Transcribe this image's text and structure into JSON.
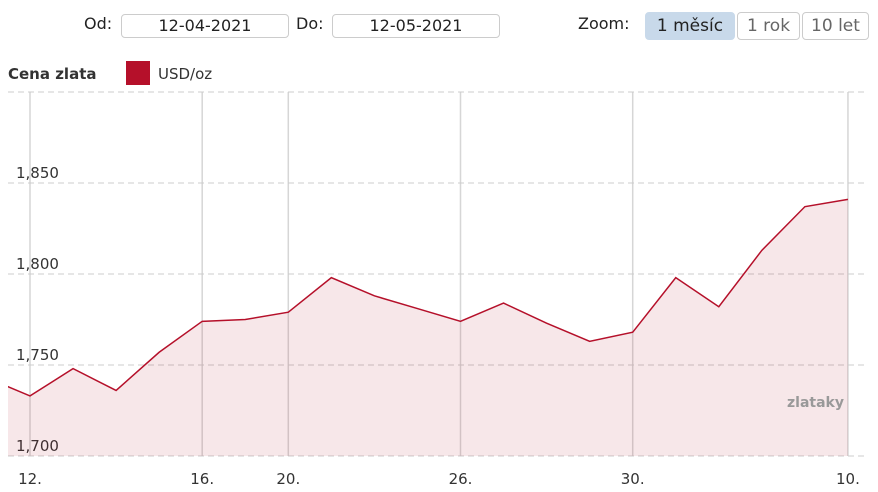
{
  "controls": {
    "from_label": "Od:",
    "from_value": "12-04-2021",
    "to_label": "Do:",
    "to_value": "12-05-2021",
    "zoom_label": "Zoom:",
    "zoom_options": [
      "1 měsíc",
      "1 rok",
      "10 let"
    ],
    "zoom_selected": 0
  },
  "chart_data": {
    "type": "area",
    "legend_title": "Cena zlata",
    "categories": [
      null,
      "12.",
      null,
      null,
      null,
      "16.",
      null,
      "20.",
      null,
      null,
      null,
      "26.",
      null,
      null,
      null,
      "30.",
      null,
      null,
      null,
      null,
      "10."
    ],
    "series": [
      {
        "name": "USD/oz",
        "color": "#b5102a",
        "values": [
          1743,
          1733,
          1748,
          1736,
          1757,
          1774,
          1775,
          1779,
          1798,
          1788,
          1781,
          1774,
          1784,
          1773,
          1763,
          1768,
          1798,
          1782,
          1813,
          1837,
          1841
        ]
      }
    ],
    "ylim": [
      1700,
      1900
    ],
    "yticks": [
      {
        "value": 1700,
        "label": "1,700"
      },
      {
        "value": 1750,
        "label": "1,750"
      },
      {
        "value": 1800,
        "label": "1,800"
      },
      {
        "value": 1850,
        "label": "1,850"
      }
    ],
    "grid": true,
    "watermark": "zlataky"
  }
}
